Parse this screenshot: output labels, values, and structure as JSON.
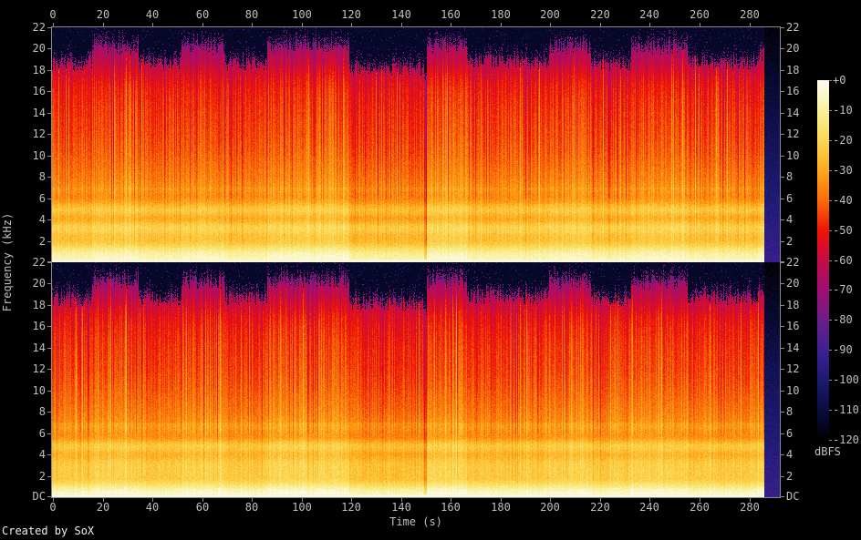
{
  "title": "Created by SoX",
  "credit": "Created by SoX",
  "axes": {
    "time": {
      "label": "Time (s)",
      "ticks": [
        "0",
        "20",
        "40",
        "60",
        "80",
        "100",
        "120",
        "140",
        "160",
        "180",
        "200",
        "220",
        "240",
        "260",
        "280"
      ]
    },
    "frequency": {
      "label": "Frequency (kHz)",
      "panel_ticks": [
        "22",
        "20",
        "18",
        "16",
        "14",
        "12",
        "10",
        "8",
        "6",
        "4",
        "2"
      ],
      "dc_label": "DC"
    }
  },
  "colorbar": {
    "label": "dBFS",
    "ticks": [
      "+0",
      "-10",
      "-20",
      "-30",
      "-40",
      "-50",
      "-60",
      "-70",
      "-80",
      "-90",
      "-100",
      "-110",
      "-120"
    ],
    "min_db": -120,
    "max_db": 0
  },
  "chart_data": {
    "type": "heatmap",
    "subtype": "audio-spectrogram",
    "source": "SoX",
    "title": "Created by SoX",
    "xlabel": "Time (s)",
    "ylabel": "Frequency (kHz)",
    "x_range_s": [
      0,
      292.6
    ],
    "y_range_khz": [
      0,
      22
    ],
    "z_range_dbfs": [
      -120,
      0
    ],
    "channels": [
      "left",
      "right"
    ],
    "audio_end_s": 286.2,
    "background": "#000000",
    "axis_color": "#8a8a8a",
    "text_color": "#bfbfbf",
    "palette": [
      {
        "db": 0,
        "hex": "#fdfbf1"
      },
      {
        "db": -5,
        "hex": "#fbf7cb"
      },
      {
        "db": -10,
        "hex": "#f8f09c"
      },
      {
        "db": -15,
        "hex": "#f9e674"
      },
      {
        "db": -20,
        "hex": "#fbd754"
      },
      {
        "db": -25,
        "hex": "#fcc438"
      },
      {
        "db": -30,
        "hex": "#fdab1c"
      },
      {
        "db": -35,
        "hex": "#fc8c10"
      },
      {
        "db": -40,
        "hex": "#f96c0a"
      },
      {
        "db": -45,
        "hex": "#f44206"
      },
      {
        "db": -50,
        "hex": "#ee1605"
      },
      {
        "db": -55,
        "hex": "#db0d24"
      },
      {
        "db": -60,
        "hex": "#c50c45"
      },
      {
        "db": -65,
        "hex": "#b30d5c"
      },
      {
        "db": -70,
        "hex": "#a00e72"
      },
      {
        "db": -80,
        "hex": "#6c1d8b"
      },
      {
        "db": -90,
        "hex": "#3e2092"
      },
      {
        "db": -100,
        "hex": "#1c1a73"
      },
      {
        "db": -110,
        "hex": "#0b0c3f"
      },
      {
        "db": -120,
        "hex": "#000000"
      }
    ],
    "spectral_profile_db_by_khz": [
      [
        0,
        -3
      ],
      [
        0.5,
        -8
      ],
      [
        1.1,
        -15
      ],
      [
        1.8,
        -22
      ],
      [
        2.6,
        -26
      ],
      [
        3.4,
        -23
      ],
      [
        4.1,
        -28
      ],
      [
        4.9,
        -26
      ],
      [
        5.6,
        -32
      ],
      [
        6.5,
        -34
      ],
      [
        8,
        -38
      ],
      [
        10,
        -42
      ],
      [
        12,
        -45
      ],
      [
        14,
        -47
      ],
      [
        16,
        -50
      ],
      [
        17,
        -53
      ],
      [
        18,
        -58
      ],
      [
        19,
        -64
      ],
      [
        20,
        -70
      ],
      [
        21,
        -85
      ],
      [
        22,
        -100
      ]
    ],
    "sections": [
      {
        "t0": 0,
        "t1": 16,
        "max_khz": 18.6,
        "boost_db": 0
      },
      {
        "t0": 16,
        "t1": 34.5,
        "max_khz": 20.2,
        "boost_db": 2
      },
      {
        "t0": 34.5,
        "t1": 52,
        "max_khz": 18.6,
        "boost_db": 0
      },
      {
        "t0": 52,
        "t1": 69.5,
        "max_khz": 20.2,
        "boost_db": 2
      },
      {
        "t0": 69.5,
        "t1": 86.5,
        "max_khz": 18.7,
        "boost_db": 0
      },
      {
        "t0": 86.5,
        "t1": 119.5,
        "max_khz": 20.3,
        "boost_db": 3
      },
      {
        "t0": 119.5,
        "t1": 149.3,
        "max_khz": 18.2,
        "boost_db": -2
      },
      {
        "t0": 149.3,
        "t1": 150.5,
        "max_khz": 17.0,
        "boost_db": -12
      },
      {
        "t0": 150.5,
        "t1": 166.5,
        "max_khz": 20.3,
        "boost_db": 3
      },
      {
        "t0": 166.5,
        "t1": 199.5,
        "max_khz": 18.8,
        "boost_db": 0
      },
      {
        "t0": 199.5,
        "t1": 216.5,
        "max_khz": 20.2,
        "boost_db": 2
      },
      {
        "t0": 216.5,
        "t1": 232.5,
        "max_khz": 18.6,
        "boost_db": 0
      },
      {
        "t0": 232.5,
        "t1": 255.5,
        "max_khz": 20.2,
        "boost_db": 2
      },
      {
        "t0": 255.5,
        "t1": 283.5,
        "max_khz": 18.7,
        "boost_db": 0
      },
      {
        "t0": 283.5,
        "t1": 286.2,
        "max_khz": 19.5,
        "boost_db": 3
      },
      {
        "t0": 286.2,
        "t1": 292.6,
        "max_khz": 0,
        "boost_db": -95
      }
    ]
  }
}
